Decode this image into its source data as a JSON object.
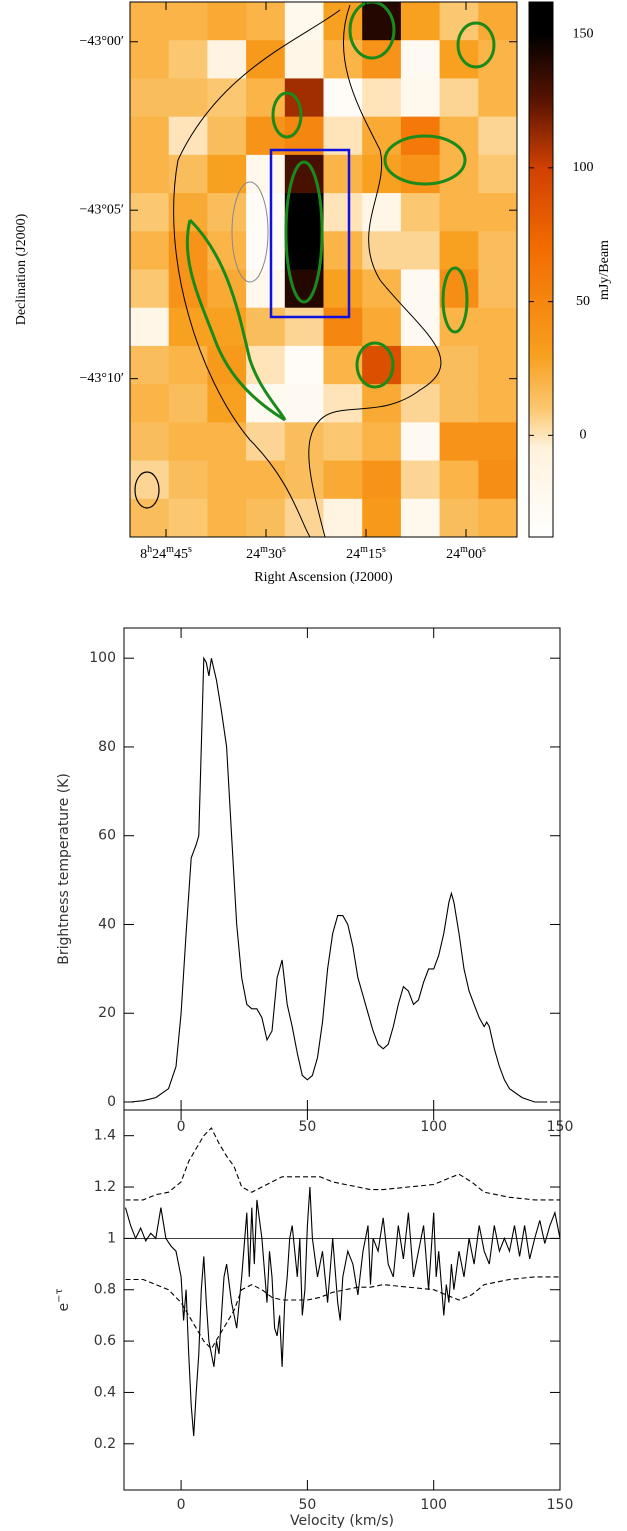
{
  "chart_data": [
    {
      "type": "heatmap",
      "xlabel": "Right Ascension (J2000)",
      "ylabel": "Declination (J2000)",
      "colorbar_label": "mJy/Beam",
      "xlim": [
        50.4,
        -7.65
      ],
      "ylim": [
        -14.7,
        1.18
      ],
      "xticks": [
        {
          "value": 45,
          "label": "8h24m45s"
        },
        {
          "value": 30,
          "label": "24m30s"
        },
        {
          "value": 15,
          "label": "24m15s"
        },
        {
          "value": 0,
          "label": "24m00s"
        }
      ],
      "yticks": [
        {
          "value": 0,
          "label": "−43°00′"
        },
        {
          "value": -5,
          "label": "−43°05′"
        },
        {
          "value": -10,
          "label": "−43°10′"
        }
      ],
      "zlim": [
        -38,
        162
      ],
      "zticks": [
        0,
        50,
        100,
        150
      ],
      "values": [
        [
          20,
          20,
          25,
          20,
          -20,
          30,
          140,
          30,
          10,
          25
        ],
        [
          20,
          10,
          -10,
          35,
          -15,
          20,
          40,
          -25,
          30,
          20
        ],
        [
          15,
          15,
          10,
          20,
          110,
          -30,
          0,
          -20,
          5,
          20
        ],
        [
          20,
          0,
          15,
          40,
          50,
          0,
          25,
          60,
          20,
          5
        ],
        [
          20,
          15,
          30,
          -20,
          130,
          20,
          30,
          40,
          20,
          10
        ],
        [
          10,
          25,
          15,
          -30,
          160,
          0,
          -15,
          10,
          20,
          20
        ],
        [
          20,
          40,
          20,
          -30,
          160,
          20,
          5,
          5,
          30,
          15
        ],
        [
          10,
          40,
          25,
          -20,
          140,
          30,
          20,
          -25,
          45,
          15
        ],
        [
          -15,
          30,
          30,
          15,
          5,
          50,
          25,
          -25,
          20,
          20
        ],
        [
          15,
          20,
          35,
          0,
          -30,
          20,
          90,
          20,
          15,
          20
        ],
        [
          20,
          15,
          30,
          -25,
          -25,
          0,
          25,
          5,
          15,
          20
        ],
        [
          15,
          20,
          20,
          5,
          15,
          10,
          20,
          -25,
          40,
          40
        ],
        [
          5,
          15,
          20,
          20,
          15,
          25,
          40,
          5,
          20,
          45
        ],
        [
          15,
          10,
          20,
          15,
          5,
          -10,
          35,
          -20,
          15,
          20
        ]
      ]
    },
    {
      "type": "line",
      "ylabel": "Brightness temperature (K)",
      "xlim": [
        -22.6,
        150
      ],
      "ylim": [
        -1.8,
        106.8
      ],
      "xticks": [
        0,
        50,
        100,
        150
      ],
      "yticks": [
        0,
        20,
        40,
        60,
        80,
        100
      ],
      "x": [
        -20,
        -15,
        -10,
        -5,
        -2,
        0,
        2,
        4,
        6,
        7,
        8,
        9,
        10,
        11,
        12,
        14,
        16,
        18,
        20,
        22,
        24,
        26,
        28,
        30,
        32,
        34,
        36,
        38,
        40,
        42,
        44,
        46,
        48,
        50,
        52,
        54,
        56,
        58,
        60,
        62,
        64,
        66,
        68,
        70,
        72,
        74,
        76,
        78,
        80,
        82,
        84,
        86,
        88,
        90,
        92,
        94,
        96,
        98,
        100,
        102,
        104,
        106,
        107,
        108,
        110,
        112,
        114,
        116,
        118,
        120,
        121,
        122,
        124,
        126,
        128,
        130,
        135,
        140,
        145
      ],
      "values": [
        0,
        0.3,
        1,
        3,
        8,
        20,
        38,
        55,
        58,
        60,
        80,
        100,
        99,
        96,
        100,
        95,
        88,
        80,
        60,
        40,
        28,
        22,
        21,
        21,
        19,
        14,
        16,
        28,
        32,
        22,
        17,
        11,
        6,
        5,
        6,
        10,
        18,
        30,
        38,
        42,
        42,
        40,
        35,
        28,
        24,
        20,
        16,
        13,
        12,
        13,
        17,
        22,
        26,
        25,
        22,
        23,
        27,
        30,
        30,
        33,
        38,
        45,
        47,
        45,
        38,
        30,
        25,
        22,
        19,
        17,
        18,
        17,
        12,
        8,
        5,
        3,
        1,
        0,
        0
      ]
    },
    {
      "type": "line",
      "xlabel": "Velocity (km/s)",
      "ylabel": "e−τ",
      "xlim": [
        -22.6,
        150
      ],
      "ylim": [
        0.02,
        1.5
      ],
      "xticks": [
        0,
        50,
        100,
        150
      ],
      "yticks": [
        0.2,
        0.4,
        0.6,
        0.8,
        1.0,
        1.2,
        1.4
      ],
      "reference_line": 1.0,
      "series": [
        {
          "color": "#000000",
          "dashed": false,
          "x": [
            -22,
            -20,
            -18,
            -16,
            -14,
            -12,
            -10,
            -8,
            -6,
            -4,
            -2,
            0,
            1,
            2,
            3,
            4,
            5,
            6,
            7,
            8,
            9,
            10,
            11,
            12,
            13,
            14,
            15,
            16,
            17,
            18,
            20,
            22,
            24,
            26,
            27,
            28,
            29,
            30,
            32,
            34,
            35,
            36,
            37,
            38,
            39,
            40,
            41,
            42,
            43,
            44,
            46,
            47,
            48,
            49,
            50,
            51,
            52,
            54,
            56,
            58,
            60,
            62,
            63,
            64,
            66,
            68,
            70,
            72,
            74,
            75,
            76,
            78,
            80,
            82,
            84,
            86,
            88,
            90,
            92,
            94,
            96,
            98,
            100,
            101,
            102,
            104,
            105,
            106,
            107,
            108,
            110,
            112,
            114,
            116,
            118,
            120,
            122,
            124,
            126,
            128,
            130,
            132,
            134,
            136,
            138,
            140,
            142,
            144,
            146,
            148,
            150
          ],
          "values": [
            1.12,
            1.05,
            1.0,
            1.04,
            0.99,
            1.02,
            1.0,
            1.12,
            1.0,
            0.97,
            0.95,
            0.85,
            0.68,
            0.8,
            0.55,
            0.35,
            0.23,
            0.4,
            0.55,
            0.8,
            0.93,
            0.75,
            0.6,
            0.55,
            0.5,
            0.6,
            0.55,
            0.7,
            0.85,
            0.9,
            0.75,
            0.65,
            0.85,
            1.1,
            0.85,
            1.12,
            0.9,
            1.15,
            1.0,
            0.75,
            0.95,
            0.85,
            0.65,
            0.62,
            0.7,
            0.5,
            0.75,
            0.85,
            1.0,
            1.05,
            0.85,
            1.0,
            0.7,
            0.8,
            1.05,
            1.2,
            1.0,
            0.85,
            0.95,
            0.75,
            1.0,
            0.75,
            0.68,
            0.85,
            0.95,
            0.9,
            0.78,
            0.95,
            1.05,
            0.82,
            1.0,
            0.95,
            1.08,
            0.9,
            0.85,
            1.05,
            0.92,
            1.1,
            0.85,
            0.95,
            1.05,
            0.8,
            1.1,
            0.85,
            0.95,
            0.7,
            0.82,
            0.75,
            0.9,
            0.8,
            0.95,
            0.85,
            1.0,
            0.9,
            1.05,
            0.95,
            0.9,
            1.05,
            0.95,
            1.0,
            0.95,
            1.05,
            0.93,
            1.05,
            0.92,
            1.0,
            1.07,
            0.98,
            1.05,
            1.1,
            1.0
          ]
        },
        {
          "color": "#000000",
          "dashed": true,
          "x": [
            -22,
            -15,
            -10,
            -5,
            0,
            3,
            6,
            9,
            12,
            15,
            18,
            21,
            24,
            28,
            32,
            36,
            40,
            45,
            50,
            55,
            60,
            65,
            70,
            75,
            80,
            90,
            100,
            105,
            110,
            115,
            120,
            130,
            140,
            150
          ],
          "values": [
            1.15,
            1.15,
            1.17,
            1.18,
            1.22,
            1.3,
            1.35,
            1.4,
            1.43,
            1.37,
            1.32,
            1.28,
            1.2,
            1.18,
            1.2,
            1.22,
            1.24,
            1.24,
            1.24,
            1.24,
            1.22,
            1.21,
            1.2,
            1.19,
            1.19,
            1.2,
            1.21,
            1.23,
            1.25,
            1.22,
            1.18,
            1.16,
            1.15,
            1.15
          ]
        },
        {
          "color": "#000000",
          "dashed": true,
          "x": [
            -22,
            -15,
            -10,
            -5,
            0,
            3,
            6,
            9,
            12,
            15,
            18,
            21,
            24,
            28,
            32,
            36,
            40,
            45,
            50,
            55,
            60,
            65,
            70,
            75,
            80,
            90,
            100,
            105,
            110,
            115,
            120,
            130,
            140,
            150
          ],
          "values": [
            0.84,
            0.84,
            0.82,
            0.8,
            0.75,
            0.7,
            0.65,
            0.6,
            0.57,
            0.62,
            0.67,
            0.72,
            0.8,
            0.82,
            0.8,
            0.77,
            0.76,
            0.76,
            0.76,
            0.77,
            0.79,
            0.8,
            0.81,
            0.81,
            0.82,
            0.81,
            0.8,
            0.78,
            0.76,
            0.78,
            0.82,
            0.84,
            0.85,
            0.85
          ]
        }
      ]
    }
  ]
}
